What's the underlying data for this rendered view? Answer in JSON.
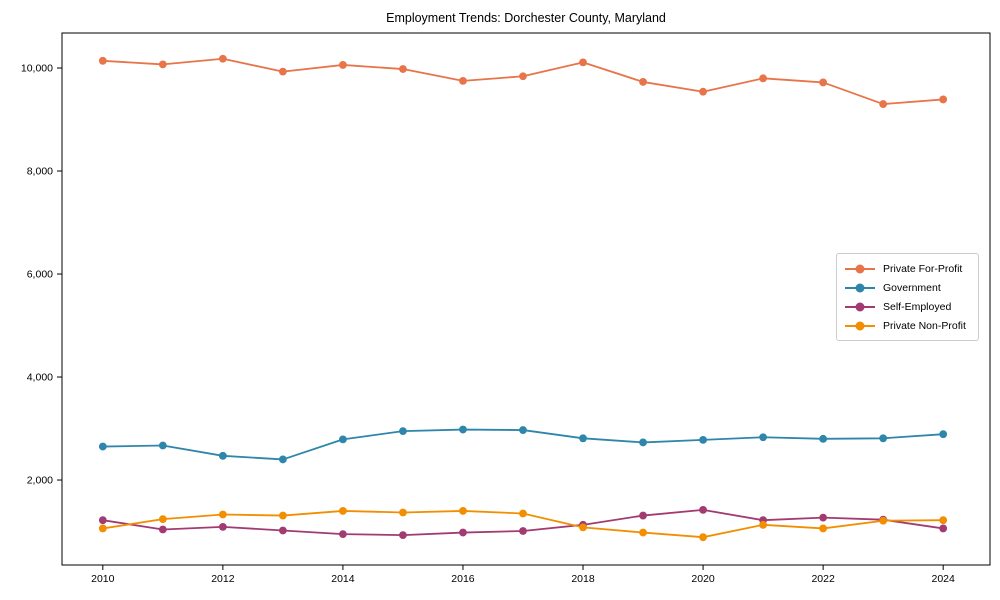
{
  "chart_data": {
    "type": "line",
    "title": "Employment Trends: Dorchester County, Maryland",
    "xlabel": "",
    "ylabel": "",
    "x": [
      2010,
      2011,
      2012,
      2013,
      2014,
      2015,
      2016,
      2017,
      2018,
      2019,
      2020,
      2021,
      2022,
      2023,
      2024
    ],
    "x_tick_labels": [
      "2010",
      "2012",
      "2014",
      "2016",
      "2018",
      "2020",
      "2022",
      "2024"
    ],
    "x_tick_values": [
      2010,
      2012,
      2014,
      2016,
      2018,
      2020,
      2022,
      2024
    ],
    "y_tick_labels": [
      "2,000",
      "4,000",
      "6,000",
      "8,000",
      "10,000"
    ],
    "y_tick_values": [
      2000,
      4000,
      6000,
      8000,
      10000
    ],
    "xlim": [
      2009.32,
      2024.78
    ],
    "ylim": [
      350,
      10680
    ],
    "grid": false,
    "legend_position": "center-right",
    "series": [
      {
        "name": "Private For-Profit",
        "color": "#E8744A",
        "values": [
          10140,
          10070,
          10180,
          9930,
          10060,
          9980,
          9750,
          9840,
          10110,
          9730,
          9540,
          9800,
          9720,
          9300,
          9390
        ]
      },
      {
        "name": "Government",
        "color": "#2E86AB",
        "values": [
          2650,
          2670,
          2470,
          2400,
          2790,
          2950,
          2980,
          2970,
          2810,
          2730,
          2780,
          2830,
          2800,
          2810,
          2890
        ]
      },
      {
        "name": "Self-Employed",
        "color": "#A23B72",
        "values": [
          1220,
          1040,
          1090,
          1020,
          950,
          930,
          980,
          1010,
          1130,
          1310,
          1420,
          1220,
          1270,
          1230,
          1060
        ]
      },
      {
        "name": "Private Non-Profit",
        "color": "#F18F01",
        "values": [
          1060,
          1240,
          1330,
          1310,
          1400,
          1370,
          1400,
          1350,
          1080,
          980,
          890,
          1130,
          1060,
          1210,
          1220
        ]
      }
    ]
  }
}
